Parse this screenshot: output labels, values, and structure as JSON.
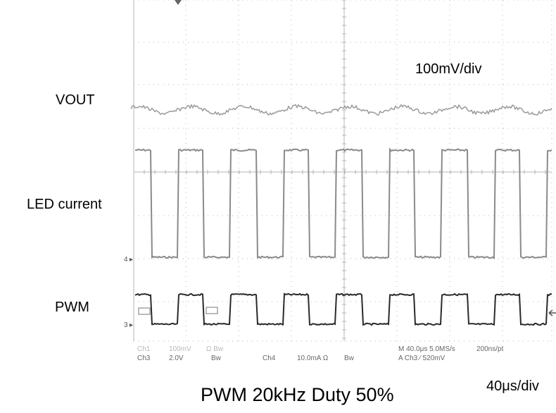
{
  "labels": {
    "vout": "VOUT",
    "led_current": "LED current",
    "pwm": "PWM",
    "vscale": "100mV/div",
    "tscale": "40μs/div",
    "caption": "PWM 20kHz Duty 50%"
  },
  "channel_markers": {
    "ch4": "4",
    "ch3": "3"
  },
  "readout": {
    "row1": {
      "ch1": "Ch1",
      "ch1_scale": "100mV",
      "ch1_flags": "Ω Bw",
      "timebase": "M 40.0μs 5.0MS/s",
      "record": "200ns/pt"
    },
    "row2": {
      "ch3": "Ch3",
      "ch3_scale": "2.0V",
      "bw1": "Bw",
      "ch4": "Ch4",
      "ch4_scale": "10.0mA Ω",
      "bw2": "Bw",
      "trigger": "A Ch3 ∕ 520mV"
    }
  },
  "colors": {
    "grid": "#b5b5b5",
    "trace_vout": "#9a9a9a",
    "trace_led": "#8a8a8a",
    "trace_pwm": "#2a2a2a"
  }
}
